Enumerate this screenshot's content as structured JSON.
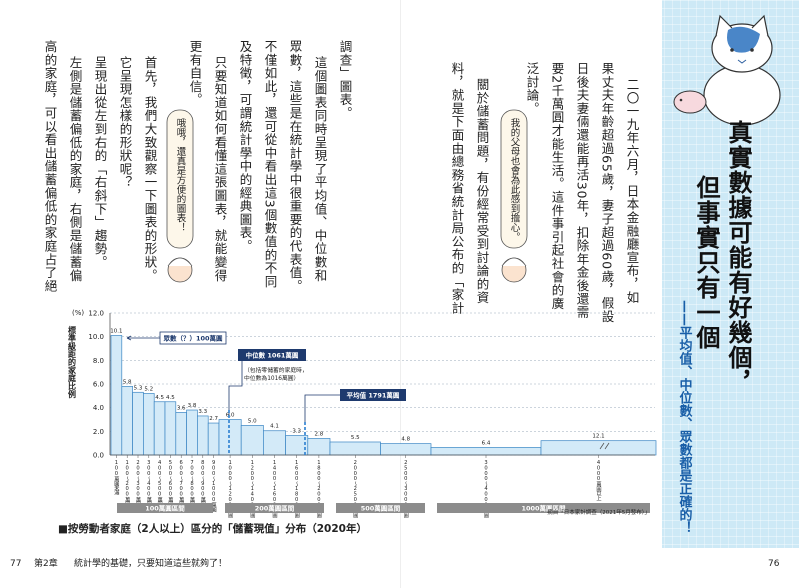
{
  "sidebar": {
    "title_lines": [
      "真實數據可能有好幾個，",
      "但事實只有一個"
    ],
    "subtitle": "——平均值、中位數、眾數都是正確的！"
  },
  "body": {
    "right_columns": [
      "二〇一九年六月，日本金融廳宣布，如",
      "果丈夫年齡超過65歲，妻子超過60歲，假設",
      "日後夫妻倆還能再活30年，扣除年金後還需",
      "要2千萬圓才能生活。這件事引起社會的廣",
      "泛討論。",
      "關於儲蓄問題，有份經常受到討論的資",
      "料，就是下面由總務省統計局公布的「家計"
    ],
    "left_columns": [
      "調查」圖表。",
      "這個圖表同時呈現了平均值、中位數和",
      "眾數，這些是在統計學中很重要的代表值。",
      "不僅如此，還可從中看出這3個數值的不同",
      "及特徵，可謂統計學中的經典圖表。",
      "只要知道如何看懂這張圖表，就能變得",
      "更有自信。",
      "首先，我們大致觀察一下圖表的形狀。",
      "它呈現怎樣的形狀呢？",
      "呈現出從左到右的「右斜下」趨勢。",
      "左側是儲蓄偏低的家庭，右側是儲蓄偏",
      "高的家庭，可以看出儲蓄偏低的家庭占了絕"
    ]
  },
  "bubbles": [
    "我的父母也會為此感到擔心。",
    "哦哦，還真是方便的圖表！"
  ],
  "chart_data": {
    "type": "bar",
    "y_unit": "(%)",
    "y_label": "標準級距的家庭比例",
    "categories": [
      "100萬圓未滿",
      "100～200萬圓",
      "200～300萬圓",
      "300～400萬圓",
      "400～500萬圓",
      "500～600萬圓",
      "600～700萬圓",
      "700～800萬圓",
      "800～900萬圓",
      "900～1000萬圓",
      "1000～1200萬圓",
      "1200～1400萬圓",
      "1400～1600萬圓",
      "1600～1800萬圓",
      "1800～2000萬圓",
      "2000～2500萬圓",
      "2500～3000萬圓",
      "3000～4000萬圓",
      "4000萬圓以上"
    ],
    "values": [
      10.1,
      5.8,
      5.3,
      5.2,
      4.5,
      4.5,
      3.6,
      3.8,
      3.3,
      2.7,
      6.0,
      5.0,
      4.1,
      3.3,
      2.8,
      5.5,
      4.8,
      6.4,
      12.1
    ],
    "value_labels": [
      "10.1",
      "5.8",
      "5.3",
      "5.2",
      "4.5",
      "4.5",
      "3.6",
      "3.8",
      "3.3",
      "2.7",
      "6.0",
      "5.0",
      "4.1",
      "3.3",
      "2.8",
      "5.5",
      "4.8",
      "6.4",
      "12.1"
    ],
    "color": "#d3eaf8",
    "ylim": [
      0,
      12
    ],
    "yticks": [
      {
        "value": 0,
        "label": "0.0"
      },
      {
        "value": 2,
        "label": "2.0"
      },
      {
        "value": 4,
        "label": "4.0"
      },
      {
        "value": 6,
        "label": "6.0"
      },
      {
        "value": 8,
        "label": "8.0"
      },
      {
        "value": 10,
        "label": "10.0"
      },
      {
        "value": 12,
        "label": "12.0"
      }
    ],
    "grid": true,
    "groups": [
      "100萬圓區間",
      "200萬圓區間",
      "500萬圓區間",
      "1000萬圓區間"
    ],
    "annotations": {
      "mode": "眾數（？）100萬圓",
      "median": "中位數 1061萬圓",
      "median_note": [
        "（包括零儲蓄的家庭時，",
        "中位數為1016萬圓）"
      ],
      "mean": "平均值 1791萬圓"
    },
    "source": "摘自「日本家計調查（2021年5月發布）」"
  },
  "caption": "■按勞動者家庭（2人以上）區分的「儲蓄現值」分布（2020年）",
  "footer": {
    "left_page": "77",
    "chapter": "第2章",
    "chapter_title": "統計學的基礎，只要知道這些就夠了！",
    "right_page": "76"
  }
}
